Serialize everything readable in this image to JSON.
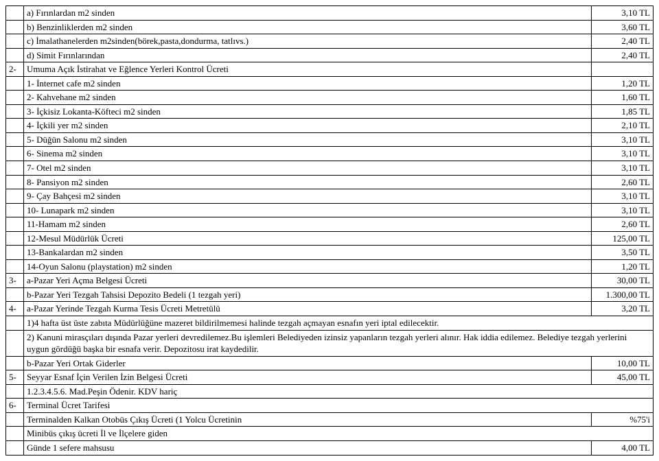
{
  "rows": [
    {
      "num": "",
      "desc": "a) Fırınlardan m2 sinden",
      "amt": "3,10 TL"
    },
    {
      "num": "",
      "desc": "b) Benzinliklerden m2 sinden",
      "amt": "3,60 TL"
    },
    {
      "num": "",
      "desc": "c) İmalathanelerden m2sinden(börek,pasta,dondurma, tatlıvs.)",
      "amt": "2,40 TL"
    },
    {
      "num": "",
      "desc": "d) Simit Fırınlarından",
      "amt": "2,40 TL"
    },
    {
      "num": "2-",
      "desc": "Umuma Açık İstirahat ve Eğlence Yerleri Kontrol Ücreti",
      "amt": ""
    },
    {
      "num": "",
      "desc": "1- İnternet cafe m2 sinden",
      "amt": "1,20 TL"
    },
    {
      "num": "",
      "desc": "2- Kahvehane m2 sinden",
      "amt": "1,60 TL"
    },
    {
      "num": "",
      "desc": "3- İçkisiz Lokanta-Köfteci m2 sinden",
      "amt": "1,85 TL"
    },
    {
      "num": "",
      "desc": "4- İçkili yer m2 sinden",
      "amt": "2,10 TL"
    },
    {
      "num": "",
      "desc": "5- Düğün Salonu m2 sinden",
      "amt": "3,10 TL"
    },
    {
      "num": "",
      "desc": "6- Sinema m2 sinden",
      "amt": "3,10 TL"
    },
    {
      "num": "",
      "desc": "7- Otel m2 sinden",
      "amt": "3,10 TL"
    },
    {
      "num": "",
      "desc": "8- Pansiyon m2 sinden",
      "amt": "2,60 TL"
    },
    {
      "num": "",
      "desc": "9- Çay Bahçesi m2 sinden",
      "amt": "3,10 TL"
    },
    {
      "num": "",
      "desc": "10- Lunapark m2 sinden",
      "amt": "3,10 TL"
    },
    {
      "num": "",
      "desc": "11-Hamam m2 sinden",
      "amt": "2,60 TL"
    },
    {
      "num": "",
      "desc": "12-Mesul Müdürlük Ücreti",
      "amt": "125,00 TL"
    },
    {
      "num": "",
      "desc": "13-Bankalardan m2 sinden",
      "amt": "3,50 TL"
    },
    {
      "num": "",
      "desc": "14-Oyun Salonu (playstation) m2 sinden",
      "amt": "1,20 TL"
    },
    {
      "num": "3-",
      "desc": "a-Pazar Yeri Açma Belgesi Ücreti",
      "amt": "30,00 TL"
    },
    {
      "num": "",
      "desc": "b-Pazar Yeri Tezgah Tahsisi Depozito Bedeli (1 tezgah yeri)",
      "amt": "1.300,00 TL"
    },
    {
      "num": "4-",
      "desc": "a-Pazar Yerinde Tezgah Kurma Tesis Ücreti Metretülü",
      "amt": "3,20 TL"
    },
    {
      "num": "",
      "desc": "1)4 hafta üst üste zabıta Müdürlüğüne mazeret bildirilmemesi halinde tezgah açmayan esnafın yeri iptal edilecektir.",
      "span": true
    },
    {
      "num": "",
      "desc": "2) Kanuni mirasçıları dışında Pazar yerleri devredilemez.Bu işlemleri Belediyeden izinsiz yapanların tezgah yerleri alınır. Hak iddia edilemez. Belediye tezgah yerlerini uygun gördüğü başka bir esnafa verir. Depozitosu irat kaydedilir.",
      "span": true
    },
    {
      "num": "",
      "desc": "b-Pazar Yeri Ortak Giderler",
      "amt": "10,00 TL"
    },
    {
      "num": "5-",
      "desc": "Seyyar Esnaf İçin Verilen İzin Belgesi Ücreti",
      "amt": "45,00 TL"
    },
    {
      "num": "",
      "desc": "1.2.3.4.5.6. Mad.Peşin Ödenir. KDV hariç",
      "span": true
    },
    {
      "num": "6-",
      "desc": "Terminal Ücret Tarifesi",
      "span": true
    },
    {
      "num": "",
      "desc": "Terminalden Kalkan Otobüs Çıkış Ücreti (1 Yolcu Ücretinin",
      "amt": "%75'i"
    },
    {
      "num": "",
      "desc": "Minibüs çıkış ücreti İl ve İlçelere giden",
      "span": true
    },
    {
      "num": "",
      "desc": "Günde 1 sefere mahsusu",
      "amt": "4,00 TL"
    }
  ]
}
